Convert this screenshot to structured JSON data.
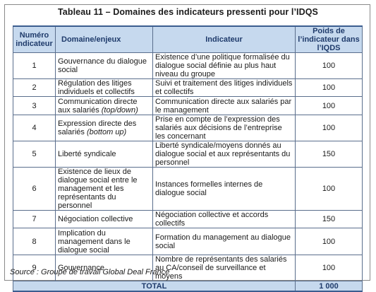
{
  "title": "Tableau 11 – Domaines des indicateurs pressenti pour l’IDQS",
  "headers": {
    "numero": "Numéro indicateur",
    "domaine": "Domaine/enjeux",
    "indicateur": "Indicateur",
    "poids": "Poids de l’indicateur dans l’IQDS"
  },
  "rows": [
    {
      "num": "1",
      "domaine": "Gouvernance du dialogue social",
      "domaine_em": "",
      "indicateur": "Existence d’une politique formalisée du dialogue social définie au plus haut niveau du groupe",
      "poids": "100"
    },
    {
      "num": "2",
      "domaine": "Régulation des litiges individuels et collectifs",
      "domaine_em": "",
      "indicateur": "Suivi et traitement des litiges individuels et collectifs",
      "poids": "100"
    },
    {
      "num": "3",
      "domaine": "Communication directe aux salariés",
      "domaine_em": "(top/down)",
      "indicateur": "Communication directe aux salariés par le management",
      "poids": "100"
    },
    {
      "num": "4",
      "domaine": "Expression directe des salariés",
      "domaine_em": "(bottom up)",
      "indicateur": "Prise en compte de l’expression des salariés aux décisions de l’entreprise les concernant",
      "poids": "100"
    },
    {
      "num": "5",
      "domaine": "Liberté syndicale",
      "domaine_em": "",
      "indicateur": "Liberté syndicale/moyens donnés au dialogue social et aux représentants du personnel",
      "poids": "150"
    },
    {
      "num": "6",
      "domaine": "Existence de lieux de dialogue social entre le management et les représentants du personnel",
      "domaine_em": "",
      "indicateur": "Instances formelles internes de dialogue social",
      "poids": "100"
    },
    {
      "num": "7",
      "domaine": "Négociation collective",
      "domaine_em": "",
      "indicateur": "Négociation collective et accords collectifs",
      "poids": "150"
    },
    {
      "num": "8",
      "domaine": "Implication du management dans le dialogue social",
      "domaine_em": "",
      "indicateur": "Formation du management au dialogue social",
      "poids": "100"
    },
    {
      "num": "9",
      "domaine": "Gouvernance",
      "domaine_em": "",
      "indicateur": "Nombre de représentants des salariés au CA/conseil de surveillance et moyens",
      "poids": "100"
    }
  ],
  "total": {
    "label": "TOTAL",
    "value": "1 000"
  },
  "source": "Source : Groupe de travail Global Deal France"
}
